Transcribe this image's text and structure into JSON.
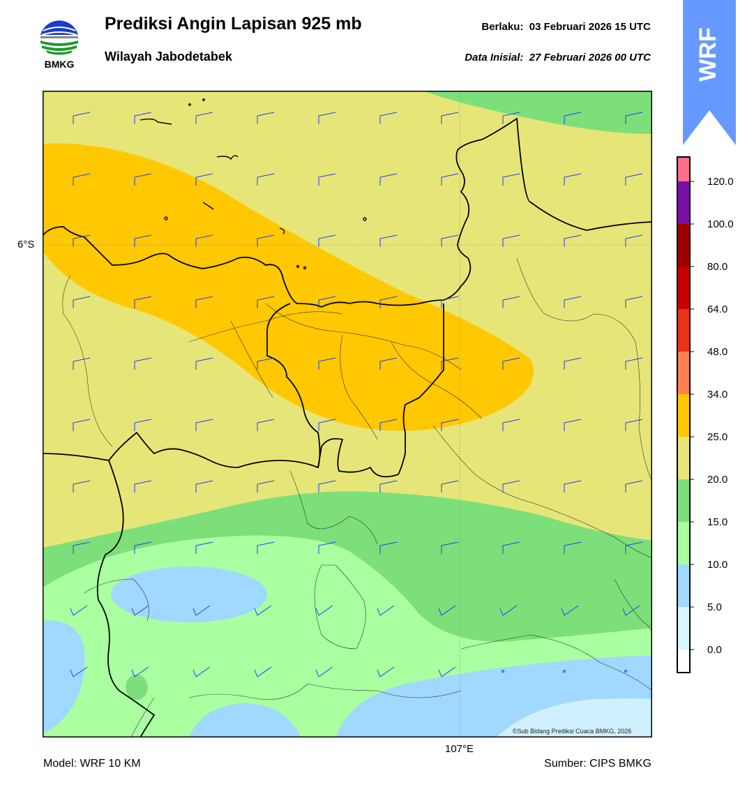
{
  "header": {
    "title": "Prediksi Angin Lapisan 925 mb",
    "subtitle": "Wilayah Jabodetabek",
    "valid_label": "Berlaku:",
    "valid_value": "03 Februari 2026 15 UTC",
    "init_label": "Data Inisial:",
    "init_value": "27 Februari 2026 00 UTC"
  },
  "logo": {
    "text": "BMKG",
    "icon": "bmkg-logo-icon"
  },
  "banner": {
    "text": "WRF",
    "color": "#6699ff"
  },
  "map": {
    "lat_label": "6°S",
    "lon_label": "107°E",
    "copyright": "©Sub Bidang Prediksi Cuaca BMKG, 2026"
  },
  "colorbar": {
    "ticks": [
      "120.0",
      "100.0",
      "80.0",
      "64.0",
      "48.0",
      "34.0",
      "25.0",
      "20.0",
      "15.0",
      "10.0",
      "5.0",
      "0.0"
    ],
    "colors": [
      "#ff6e8a",
      "#7a0fa8",
      "#9c0000",
      "#c80000",
      "#e8321a",
      "#ff8050",
      "#ffc800",
      "#e6e678",
      "#7ddf7a",
      "#aaffa0",
      "#a0d8ff",
      "#d8f6ff",
      "#ffffff"
    ]
  },
  "palette": {
    "yellow": "#e6e678",
    "orange": "#ffc800",
    "green": "#7ddf7a",
    "lightgreen": "#aaffa0",
    "blue": "#a0d8ff",
    "paleblue": "#d0f0ff",
    "barb": "#1a3cff"
  },
  "footer": {
    "model": "Model: WRF 10 KM",
    "source": "Sumber: CIPS BMKG"
  }
}
